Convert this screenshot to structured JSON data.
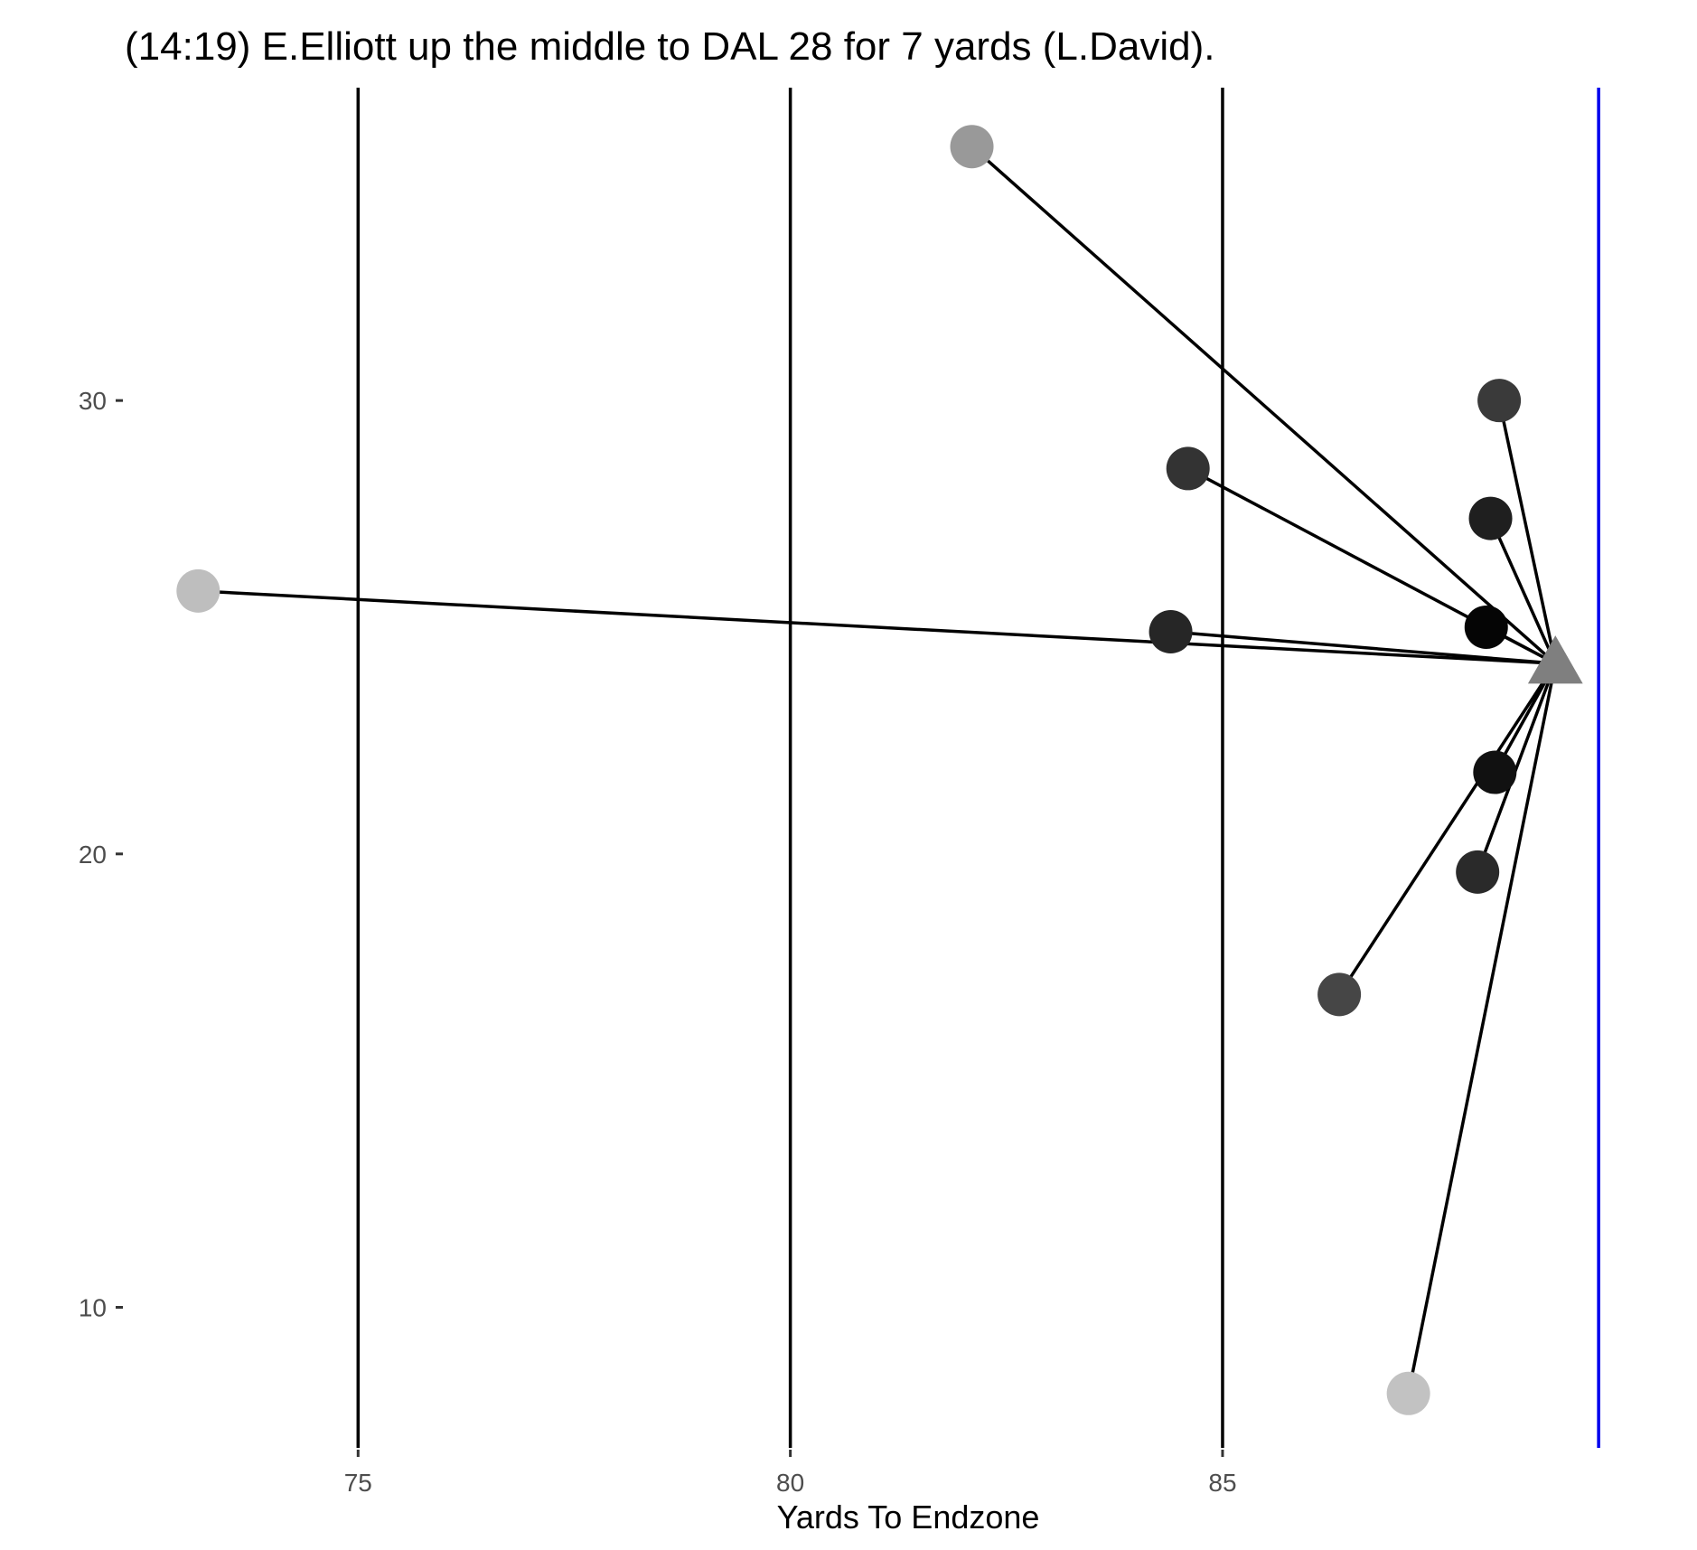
{
  "chart_data": {
    "type": "scatter",
    "title": "(14:19) E.Elliott up the middle to DAL 28 for 7 yards (L.David).",
    "xlabel": "Yards To Endzone",
    "ylabel": "",
    "xlim": [
      72.3,
      90.3
    ],
    "ylim": [
      6.9,
      36.9
    ],
    "x_ticks": [
      75,
      80,
      85
    ],
    "y_ticks": [
      10,
      20,
      30
    ],
    "grid": false,
    "ball_carrier": {
      "x": 88.85,
      "y": 24.2,
      "marker": "triangle",
      "color": "#7f7f7f"
    },
    "line_of_scrimmage": {
      "x": 89.35,
      "color": "#0000ee"
    },
    "yard_lines": [
      75,
      80,
      85
    ],
    "players": [
      {
        "x": 73.15,
        "y": 25.8,
        "color": "#bebebe"
      },
      {
        "x": 82.1,
        "y": 35.6,
        "color": "#999999"
      },
      {
        "x": 84.6,
        "y": 28.5,
        "color": "#333333"
      },
      {
        "x": 84.4,
        "y": 24.9,
        "color": "#262626"
      },
      {
        "x": 88.2,
        "y": 30.0,
        "color": "#3a3a3a"
      },
      {
        "x": 88.1,
        "y": 27.4,
        "color": "#1f1f1f"
      },
      {
        "x": 88.05,
        "y": 25.0,
        "color": "#050505"
      },
      {
        "x": 88.15,
        "y": 21.8,
        "color": "#111111"
      },
      {
        "x": 87.95,
        "y": 19.6,
        "color": "#2a2a2a"
      },
      {
        "x": 86.35,
        "y": 16.9,
        "color": "#464646"
      },
      {
        "x": 87.15,
        "y": 8.1,
        "color": "#c2c2c2"
      }
    ]
  }
}
